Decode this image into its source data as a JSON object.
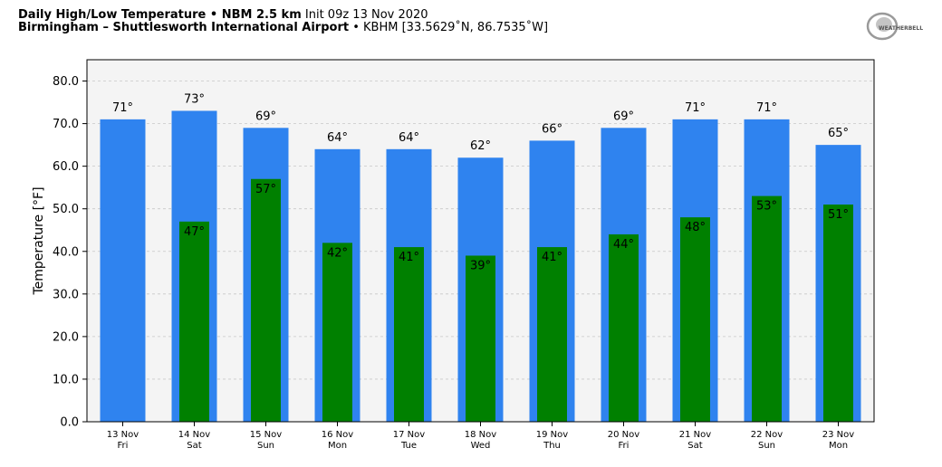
{
  "header": {
    "title_bold": "Daily High/Low Temperature • NBM 2.5 km",
    "title_init": "Init 09z 13 Nov 2020",
    "station_bold": "Birmingham – Shuttlesworth International Airport",
    "station_rest": "• KBHM [33.5629˚N, 86.7535˚W]"
  },
  "logo": {
    "text": "WEATHERBELL",
    "icon": "weatherbell-logo"
  },
  "chart_data": {
    "type": "bar",
    "title": "Daily High/Low Temperature • NBM 2.5 km",
    "ylabel": "Temperature [°F]",
    "xlabel": "",
    "ylim": [
      0,
      85
    ],
    "yticks": [
      0,
      10,
      20,
      30,
      40,
      50,
      60,
      70,
      80
    ],
    "ytick_labels": [
      "0.0",
      "10.0",
      "20.0",
      "30.0",
      "40.0",
      "50.0",
      "60.0",
      "70.0",
      "80.0"
    ],
    "grid": true,
    "categories": [
      "13 Nov",
      "14 Nov",
      "15 Nov",
      "16 Nov",
      "17 Nov",
      "18 Nov",
      "19 Nov",
      "20 Nov",
      "21 Nov",
      "22 Nov",
      "23 Nov"
    ],
    "weekdays": [
      "Fri",
      "Sat",
      "Sun",
      "Mon",
      "Tue",
      "Wed",
      "Thu",
      "Fri",
      "Sat",
      "Sun",
      "Mon"
    ],
    "series": [
      {
        "values": [
          71,
          73,
          69,
          64,
          64,
          62,
          66,
          69,
          71,
          71,
          65
        ],
        "labels": [
          "71°",
          "73°",
          "69°",
          "64°",
          "64°",
          "62°",
          "66°",
          "69°",
          "71°",
          "71°",
          "65°"
        ],
        "color": "#2f83ef"
      },
      {
        "values": [
          null,
          47,
          57,
          42,
          41,
          39,
          41,
          44,
          48,
          53,
          51
        ],
        "labels": [
          "",
          "47°",
          "57°",
          "42°",
          "41°",
          "39°",
          "41°",
          "44°",
          "48°",
          "53°",
          "51°"
        ],
        "color": "#008000"
      }
    ],
    "plot_background": "#f4f4f4"
  }
}
